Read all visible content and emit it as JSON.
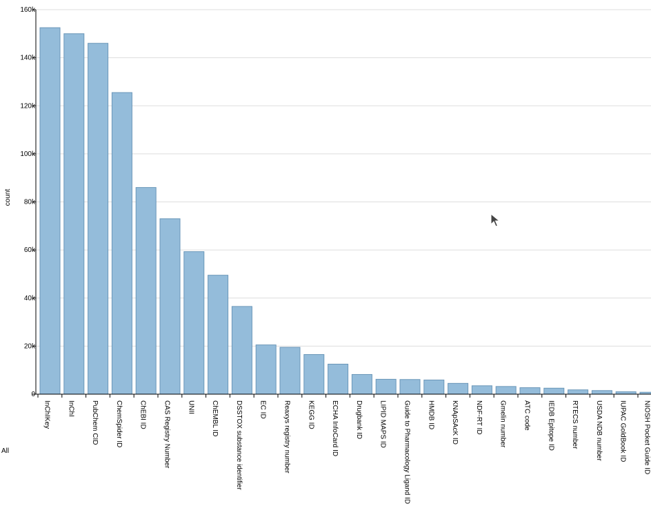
{
  "filter_label": "All",
  "chart_data": {
    "type": "bar",
    "ylabel": "count",
    "xlabel": "",
    "ylim": [
      0,
      160000
    ],
    "yticks": [
      {
        "value": 0,
        "label": "0"
      },
      {
        "value": 20000,
        "label": "20k"
      },
      {
        "value": 40000,
        "label": "40k"
      },
      {
        "value": 60000,
        "label": "60k"
      },
      {
        "value": 80000,
        "label": "80k"
      },
      {
        "value": 100000,
        "label": "100k"
      },
      {
        "value": 120000,
        "label": "120k"
      },
      {
        "value": 140000,
        "label": "140k"
      },
      {
        "value": 160000,
        "label": "160k"
      }
    ],
    "grid": true,
    "categories": [
      "InChIKey",
      "InChI",
      "PubChem CID",
      "ChemSpider ID",
      "ChEBI ID",
      "CAS Registry Number",
      "UNII",
      "ChEMBL ID",
      "DSSTOX substance identifier",
      "EC ID",
      "Reaxys registry number",
      "KEGG ID",
      "ECHA InfoCard ID",
      "Drugbank ID",
      "LIPID MAPS ID",
      "Guide to Pharmacology Ligand ID",
      "HMDB ID",
      "KNApSAcK ID",
      "NDF-RT ID",
      "Gmelin number",
      "ATC code",
      "IEDB Epitope ID",
      "RTECS number",
      "USDA NDB number",
      "IUPAC GoldBook ID",
      "NIOSH Pocket Guide ID"
    ],
    "values": [
      152500,
      150000,
      146000,
      125500,
      86000,
      73000,
      59300,
      49500,
      36500,
      20500,
      19500,
      16500,
      12500,
      8200,
      6200,
      6100,
      5900,
      4500,
      3500,
      3200,
      2700,
      2500,
      1800,
      1500,
      1000,
      800
    ],
    "bar_color": "#94bcda",
    "bar_stroke": "#6a96b8"
  }
}
